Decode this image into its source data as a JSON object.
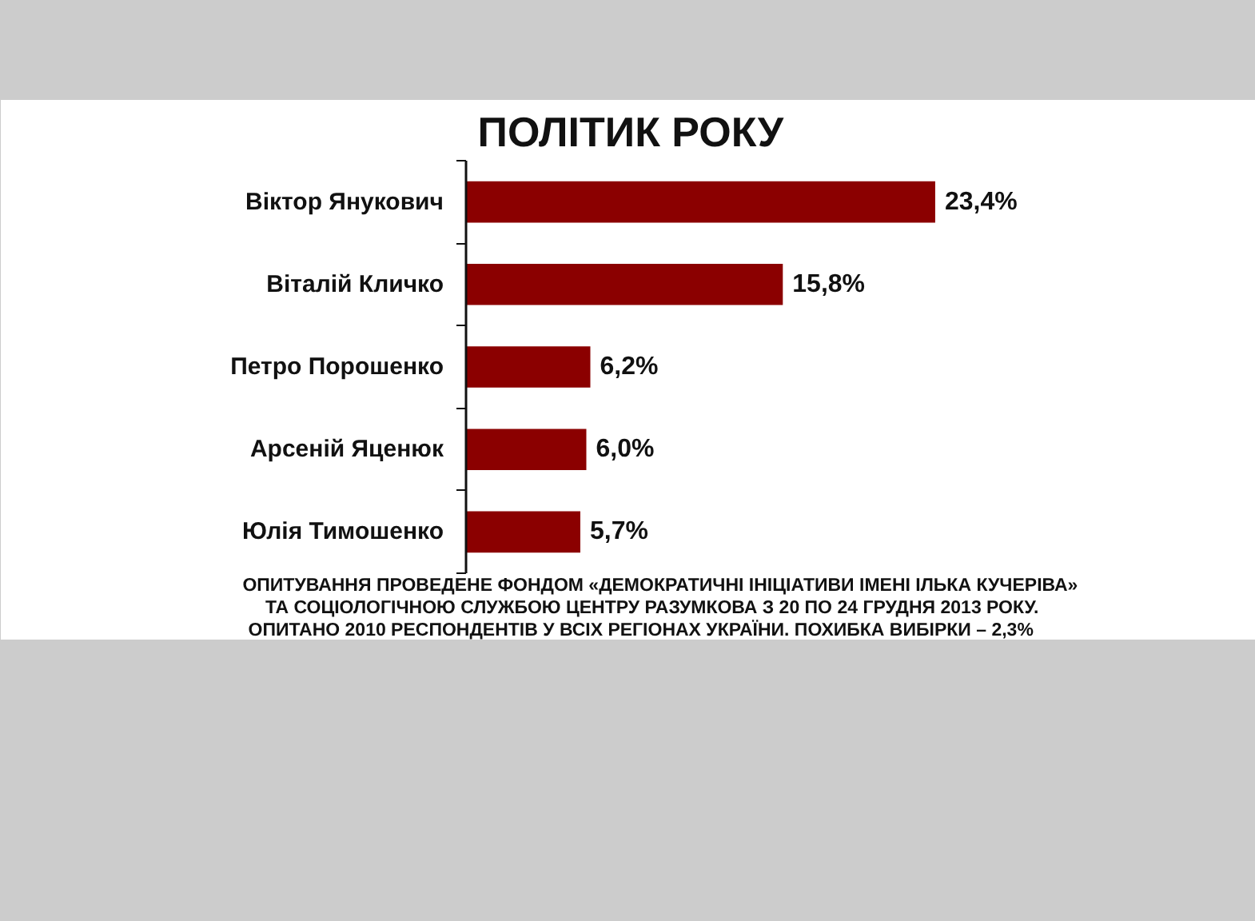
{
  "chart_data": {
    "type": "bar",
    "orientation": "horizontal",
    "title": "ПОЛІТИК РОКУ",
    "categories": [
      "Віктор Янукович",
      "Віталій Кличко",
      "Петро Порошенко",
      "Арсеній Яценюк",
      "Юлія Тимошенко"
    ],
    "values": [
      23.4,
      15.8,
      6.2,
      6.0,
      5.7
    ],
    "value_labels": [
      "23,4%",
      "15,8%",
      "6,2%",
      "6,0%",
      "5,7%"
    ],
    "color": "#8b0000",
    "annotations": [
      "ОПИТУВАННЯ ПРОВЕДЕНЕ ФОНДОМ «ДЕМОКРАТИЧНІ ІНІЦІАТИВИ ІМЕНІ ІЛЬКА КУЧЕРІВА»",
      "ТА СОЦІОЛОГІЧНОЮ СЛУЖБОЮ ЦЕНТРУ РАЗУМКОВА З 20 ПО 24 ГРУДНЯ 2013 РОКУ.",
      "ОПИТАНО 2010 РЕСПОНДЕНТІВ У ВСІХ РЕГІОНАХ УКРАЇНИ. ПОХИБКА ВИБІРКИ – 2,3%"
    ]
  }
}
